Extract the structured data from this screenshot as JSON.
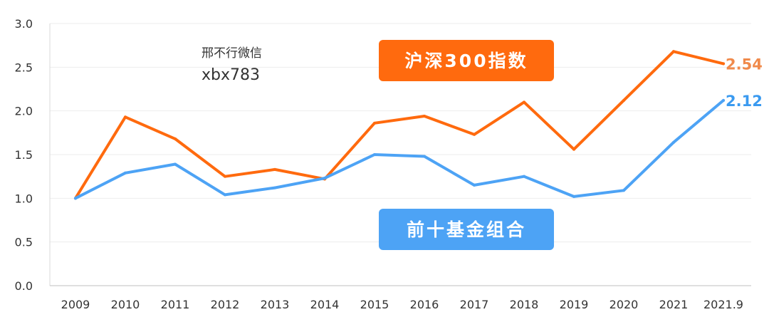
{
  "chart_data": {
    "type": "line",
    "categories": [
      "2009",
      "2010",
      "2011",
      "2012",
      "2013",
      "2014",
      "2015",
      "2016",
      "2017",
      "2018",
      "2019",
      "2020",
      "2021",
      "2021.9"
    ],
    "ylim": [
      0,
      3.0
    ],
    "yticks": [
      "0.0",
      "0.5",
      "1.0",
      "1.5",
      "2.0",
      "2.5",
      "3.0"
    ],
    "grid": true,
    "series": [
      {
        "name": "沪深300指数",
        "color": "#FF6A0E",
        "end_label": "2.54",
        "label_color": "#F08A4B",
        "values": [
          1.0,
          1.93,
          1.68,
          1.25,
          1.33,
          1.22,
          1.86,
          1.94,
          1.73,
          2.1,
          1.56,
          2.12,
          2.68,
          2.54
        ]
      },
      {
        "name": "前十基金组合",
        "color": "#4DA3F5",
        "end_label": "2.12",
        "label_color": "#3A9AF0",
        "values": [
          1.0,
          1.29,
          1.39,
          1.04,
          1.12,
          1.23,
          1.5,
          1.48,
          1.15,
          1.25,
          1.02,
          1.09,
          1.64,
          2.12
        ]
      }
    ]
  },
  "watermark": {
    "line1": "邢不行微信",
    "line2": "xbx783"
  }
}
